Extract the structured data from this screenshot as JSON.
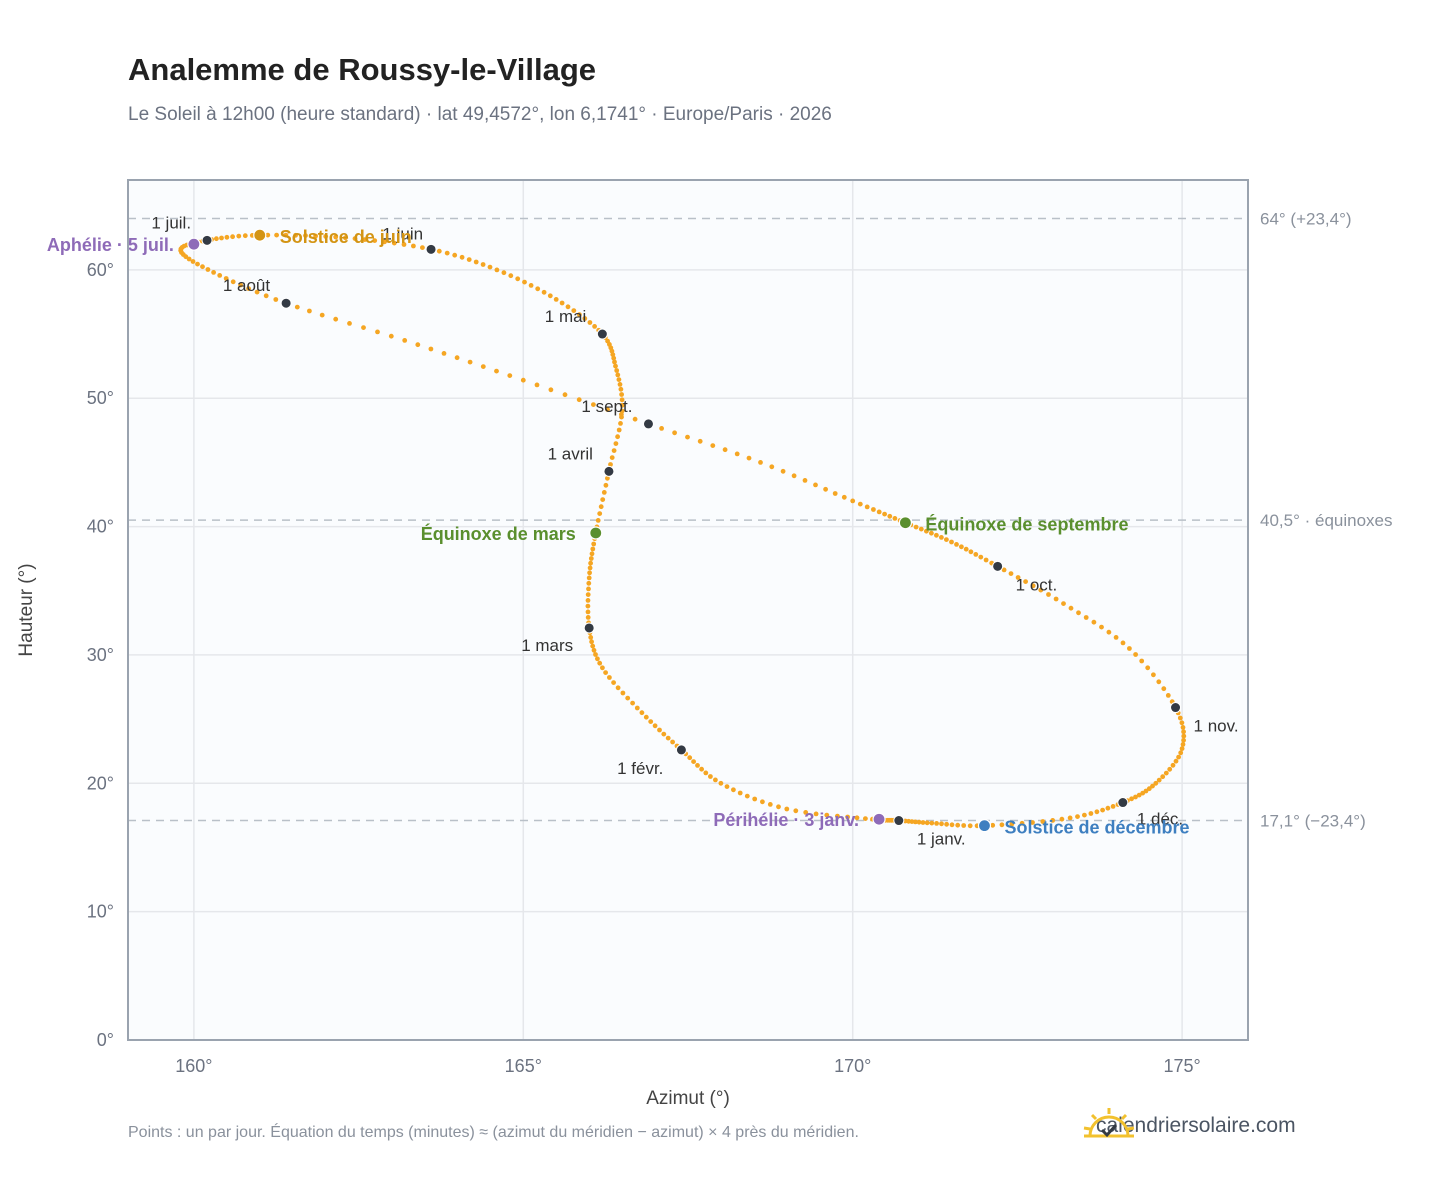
{
  "title": "Analemme de Roussy-le-Village",
  "subtitle": "Le Soleil à 12h00 (heure standard) · lat 49,4572°, lon 6,1741° · Europe/Paris · 2026",
  "footer": "Points : un par jour. Équation du temps (minutes) ≈ (azimut du méridien − azimut) × 4 près du méridien.",
  "brand": {
    "text": "calendriersolaire.com",
    "icon": "sun-check-icon",
    "color": "#f2c12e"
  },
  "colors": {
    "curve": "#f5a623",
    "marker": "#333a44",
    "equinox": "#5a8f2e",
    "june": "#d39414",
    "december": "#3e7fc0",
    "apsis": "#8e6bb8",
    "grid": "#e5e7eb",
    "frame": "#9aa3af",
    "plot_bg": "#fafcfe"
  },
  "chart_data": {
    "type": "scatter",
    "xlabel": "Azimut (°)",
    "ylabel": "Hauteur (°)",
    "xlim": [
      159,
      176
    ],
    "ylim": [
      0,
      67
    ],
    "x_ticks": [
      160,
      165,
      170,
      175
    ],
    "x_tick_labels": [
      "160°",
      "165°",
      "170°",
      "175°"
    ],
    "y_ticks": [
      0,
      10,
      20,
      30,
      40,
      50,
      60
    ],
    "y_tick_labels": [
      "0°",
      "10°",
      "20°",
      "30°",
      "40°",
      "50°",
      "60°"
    ],
    "grid": true,
    "reference_lines": [
      {
        "y": 64.0,
        "label": "64° (+23,4°)"
      },
      {
        "y": 40.5,
        "label": "40,5° · équinoxes"
      },
      {
        "y": 17.1,
        "label": "17,1° (−23,4°)"
      }
    ],
    "monthly_markers": [
      {
        "label": "1 janv.",
        "x": 170.7,
        "y": 17.1
      },
      {
        "label": "1 févr.",
        "x": 167.4,
        "y": 22.6
      },
      {
        "label": "1 mars",
        "x": 166.0,
        "y": 32.1
      },
      {
        "label": "1 avril",
        "x": 166.3,
        "y": 44.3
      },
      {
        "label": "1 mai",
        "x": 166.2,
        "y": 55.0
      },
      {
        "label": "1 juin",
        "x": 163.6,
        "y": 61.6
      },
      {
        "label": "1 juil.",
        "x": 160.2,
        "y": 62.3
      },
      {
        "label": "1 août",
        "x": 161.4,
        "y": 57.4
      },
      {
        "label": "1 sept.",
        "x": 166.9,
        "y": 48.0
      },
      {
        "label": "1 oct.",
        "x": 172.2,
        "y": 36.9
      },
      {
        "label": "1 nov.",
        "x": 174.9,
        "y": 25.9
      },
      {
        "label": "1 déc.",
        "x": 174.1,
        "y": 18.5
      }
    ],
    "events": [
      {
        "label": "Solstice de juin",
        "x": 161.0,
        "y": 62.7,
        "color": "#d39414"
      },
      {
        "label": "Solstice de décembre",
        "x": 172.0,
        "y": 16.7,
        "color": "#3e7fc0"
      },
      {
        "label": "Équinoxe de mars",
        "x": 166.1,
        "y": 39.5,
        "color": "#5a8f2e"
      },
      {
        "label": "Équinoxe de septembre",
        "x": 170.8,
        "y": 40.3,
        "color": "#5a8f2e"
      },
      {
        "label": "Aphélie · 5 juil.",
        "x": 160.0,
        "y": 62.0,
        "color": "#8e6bb8"
      },
      {
        "label": "Périhélie · 3 janv.",
        "x": 170.4,
        "y": 17.2,
        "color": "#8e6bb8"
      }
    ],
    "curve_points": [
      [
        170.7,
        17.1
      ],
      [
        170.3,
        17.2
      ],
      [
        169.0,
        18.0
      ],
      [
        168.0,
        20.0
      ],
      [
        167.4,
        22.6
      ],
      [
        166.8,
        25.5
      ],
      [
        166.2,
        29.0
      ],
      [
        166.0,
        32.1
      ],
      [
        166.0,
        36.0
      ],
      [
        166.1,
        39.5
      ],
      [
        166.3,
        44.3
      ],
      [
        166.5,
        49.0
      ],
      [
        166.4,
        52.5
      ],
      [
        166.2,
        55.0
      ],
      [
        165.5,
        57.7
      ],
      [
        164.6,
        60.0
      ],
      [
        163.6,
        61.6
      ],
      [
        162.3,
        62.5
      ],
      [
        161.0,
        62.7
      ],
      [
        160.2,
        62.3
      ],
      [
        159.8,
        61.5
      ],
      [
        160.3,
        59.8
      ],
      [
        161.4,
        57.4
      ],
      [
        163.2,
        54.5
      ],
      [
        165.0,
        51.4
      ],
      [
        166.9,
        48.0
      ],
      [
        168.6,
        45.0
      ],
      [
        170.0,
        42.0
      ],
      [
        170.8,
        40.3
      ],
      [
        171.5,
        38.8
      ],
      [
        172.2,
        36.9
      ],
      [
        173.2,
        34.0
      ],
      [
        174.2,
        30.5
      ],
      [
        174.9,
        25.9
      ],
      [
        175.0,
        22.7
      ],
      [
        174.6,
        20.0
      ],
      [
        174.1,
        18.5
      ],
      [
        173.3,
        17.3
      ],
      [
        172.0,
        16.7
      ],
      [
        171.2,
        16.9
      ],
      [
        170.7,
        17.1
      ]
    ]
  }
}
